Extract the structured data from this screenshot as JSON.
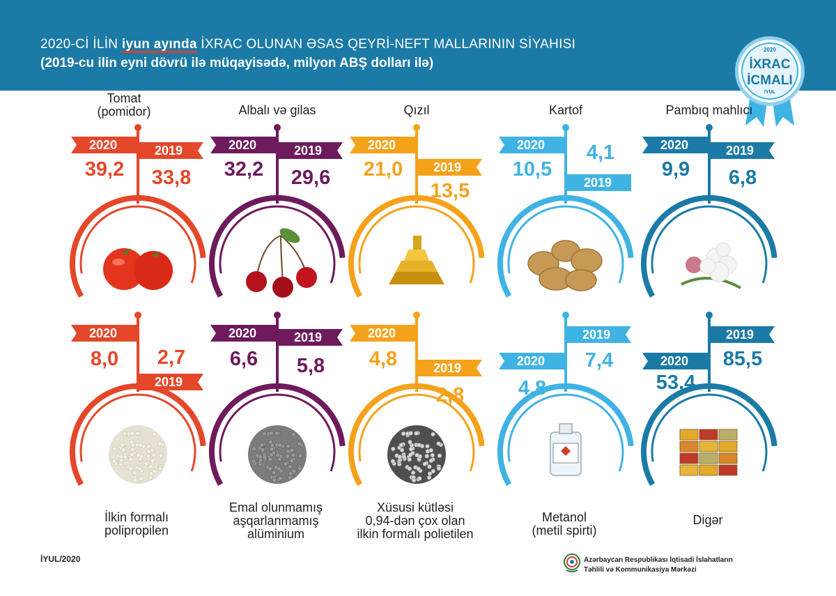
{
  "header": {
    "title_part1": "2020-Cİ İLİN ",
    "title_highlight": "iyun ayında",
    "title_part2": " İXRAC OLUNAN ƏSAS QEYRİ-NEFT MALLARININ SİYAHISI",
    "subtitle": "(2019-cu ilin eyni dövrü ilə müqayisədə, milyon ABŞ dolları ilə)",
    "badge_year": "2020",
    "badge_line1": "İXRAC",
    "badge_line2": "İCMALI",
    "badge_month": "İYUL"
  },
  "footer": {
    "date": "İYUL/2020",
    "org_line1": "Azərbaycan Respublikası İqtisadi İslahatların",
    "org_line2": "Təhlili və Kommunikasiya Mərkəzi"
  },
  "chart_data": {
    "type": "table",
    "title": "2020-Cİ İLİN iyun ayında İXRAC OLUNAN ƏSAS QEYRİ-NEFT MALLARININ SİYAHISI",
    "unit": "milyon ABŞ dolları",
    "year_labels": [
      "2020",
      "2019"
    ],
    "items": [
      {
        "name_lines": [
          "Tomat",
          "(pomidor)"
        ],
        "value_2020": "39,2",
        "value_2019": "33,8",
        "color": "#e5472a",
        "icon": "tomato-icon"
      },
      {
        "name_lines": [
          "Albalı və gilas"
        ],
        "value_2020": "32,2",
        "value_2019": "29,6",
        "color": "#6e1a5c",
        "icon": "cherry-icon"
      },
      {
        "name_lines": [
          "Qızıl"
        ],
        "value_2020": "21,0",
        "value_2019": "13,5",
        "color": "#f5a21b",
        "icon": "gold-icon"
      },
      {
        "name_lines": [
          "Kartof"
        ],
        "value_2020": "10,5",
        "value_2019": "4,1",
        "color": "#3fb3e3",
        "icon": "potato-icon"
      },
      {
        "name_lines": [
          "Pambıq mahlıcı"
        ],
        "value_2020": "9,9",
        "value_2019": "6,8",
        "color": "#1b7aa6",
        "icon": "cotton-icon"
      },
      {
        "name_lines": [
          "İlkin formalı",
          "polipropilen"
        ],
        "value_2020": "8,0",
        "value_2019": "2,7",
        "color": "#e5472a",
        "icon": "polypropylene-icon"
      },
      {
        "name_lines": [
          "Emal olunmamış",
          "aşqarlanmamış",
          "alüminium"
        ],
        "value_2020": "6,6",
        "value_2019": "5,8",
        "color": "#6e1a5c",
        "icon": "aluminium-icon"
      },
      {
        "name_lines": [
          "Xüsusi kütləsi",
          "0,94-dən çox olan",
          "ilkin formalı polietilen"
        ],
        "value_2020": "4,8",
        "value_2019": "2,8",
        "color": "#f5a21b",
        "icon": "polyethylene-icon"
      },
      {
        "name_lines": [
          "Metanol",
          "(metil spirti)"
        ],
        "value_2020": "4,8",
        "value_2019": "7,4",
        "color": "#3fb3e3",
        "icon": "methanol-icon"
      },
      {
        "name_lines": [
          "Digər"
        ],
        "value_2020": "53,4",
        "value_2019": "85,5",
        "color": "#1b7aa6",
        "icon": "containers-icon"
      }
    ]
  }
}
